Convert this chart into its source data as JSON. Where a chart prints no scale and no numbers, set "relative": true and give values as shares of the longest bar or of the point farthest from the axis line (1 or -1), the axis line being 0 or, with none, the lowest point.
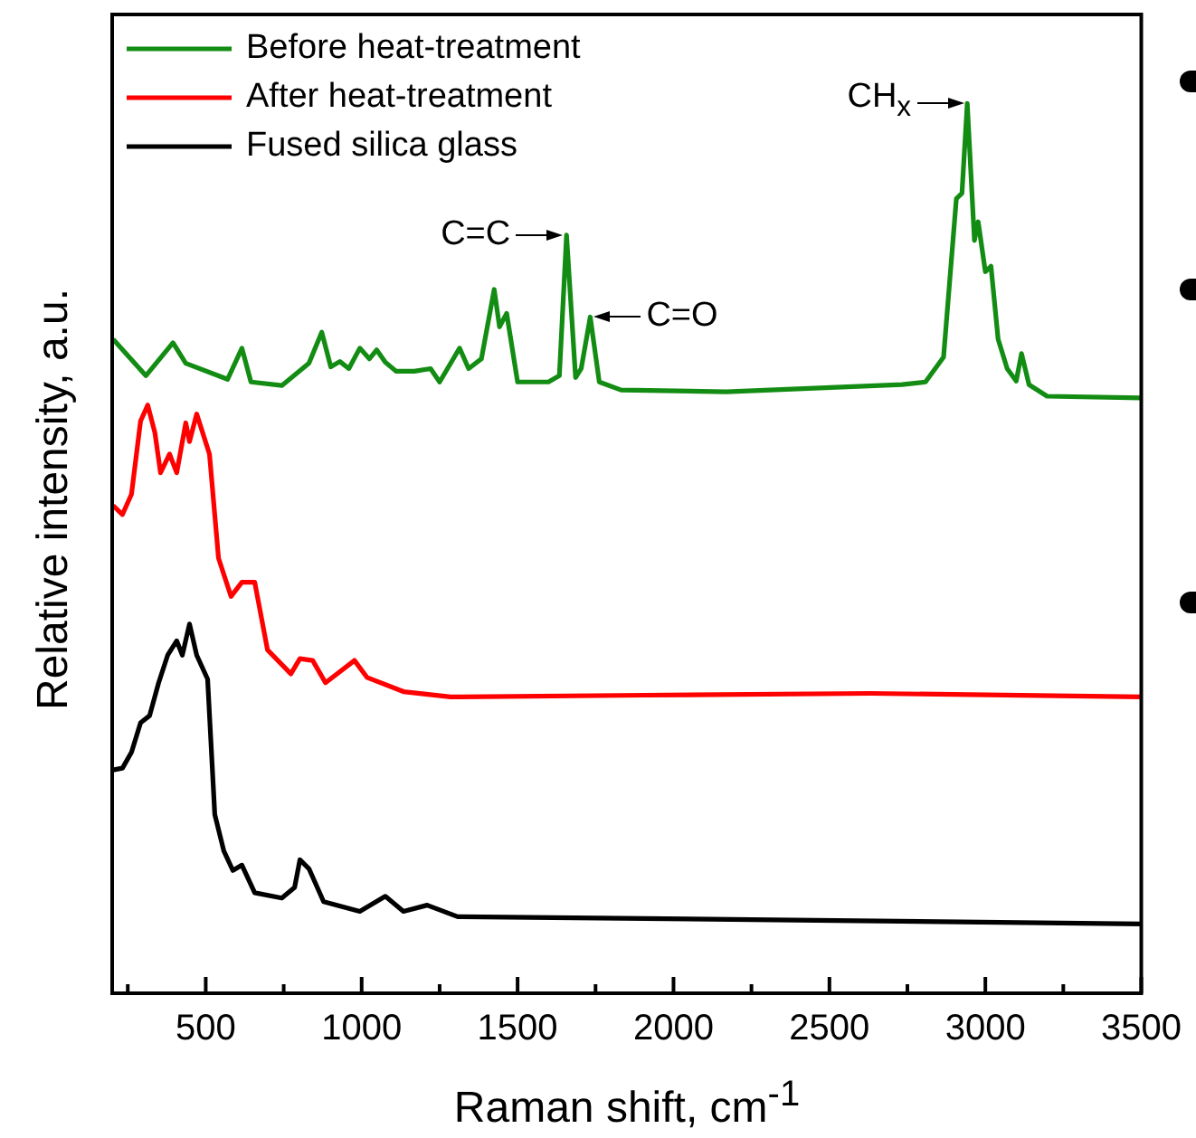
{
  "chart_data": {
    "type": "line",
    "relative": true,
    "xlabel": "Raman shift, cm$^{-1}$",
    "ylabel": "Relative intensity, a.u.",
    "xlim": [
      200,
      3500
    ],
    "xticks": [
      {
        "value": 250,
        "label": null
      },
      500,
      {
        "value": 750,
        "label": null
      },
      1000,
      {
        "value": 1250,
        "label": null
      },
      1500,
      {
        "value": 1750,
        "label": null
      },
      2000,
      {
        "value": 2250,
        "label": null
      },
      2500,
      {
        "value": 2750,
        "label": null
      },
      3000,
      {
        "value": 3250,
        "label": null
      },
      3500
    ],
    "legend": "top left",
    "grid": false,
    "marker": "none",
    "line_style": "solid",
    "annotations": [
      {
        "text": "C=C",
        "x": 1657,
        "y": 0.852
      },
      {
        "text": "C=O",
        "x": 1733,
        "y": 0.76
      },
      {
        "text": "CH$_{x}$",
        "x": 2942,
        "y": 1
      }
    ],
    "series": [
      {
        "name": "Before heat-treatment",
        "color": "#138c13",
        "x": [
          203,
          308,
          395,
          436,
          570,
          616,
          645,
          744,
          831,
          872,
          901,
          930,
          959,
          994,
          1025,
          1048,
          1076,
          1111,
          1169,
          1221,
          1250,
          1314,
          1343,
          1384,
          1425,
          1442,
          1465,
          1500,
          1599,
          1634,
          1657,
          1686,
          1704,
          1733,
          1762,
          1832,
          2169,
          2733,
          2808,
          2866,
          2907,
          2925,
          2942,
          2965,
          2977,
          3000,
          3018,
          3041,
          3070,
          3099,
          3116,
          3140,
          3198,
          3500
        ],
        "values": [
          0.735,
          0.694,
          0.731,
          0.708,
          0.69,
          0.725,
          0.687,
          0.683,
          0.708,
          0.743,
          0.704,
          0.71,
          0.702,
          0.725,
          0.713,
          0.723,
          0.709,
          0.699,
          0.699,
          0.702,
          0.687,
          0.725,
          0.702,
          0.713,
          0.791,
          0.749,
          0.764,
          0.687,
          0.687,
          0.694,
          0.852,
          0.692,
          0.702,
          0.76,
          0.687,
          0.678,
          0.676,
          0.684,
          0.687,
          0.715,
          0.893,
          0.899,
          1,
          0.846,
          0.867,
          0.811,
          0.817,
          0.735,
          0.702,
          0.688,
          0.719,
          0.684,
          0.671,
          0.669
        ]
      },
      {
        "name": "After heat-treatment",
        "color": "#ff0000",
        "x": [
          203,
          233,
          262,
          291,
          314,
          337,
          355,
          384,
          407,
          436,
          448,
          471,
          512,
          541,
          581,
          616,
          657,
          698,
          773,
          802,
          843,
          884,
          977,
          1017,
          1134,
          1285,
          1907,
          2633,
          3500
        ],
        "values": [
          0.548,
          0.538,
          0.561,
          0.643,
          0.661,
          0.63,
          0.585,
          0.606,
          0.585,
          0.641,
          0.62,
          0.651,
          0.606,
          0.489,
          0.446,
          0.462,
          0.462,
          0.386,
          0.359,
          0.376,
          0.374,
          0.349,
          0.374,
          0.355,
          0.339,
          0.333,
          0.335,
          0.337,
          0.333
        ]
      },
      {
        "name": "Fused silica glass",
        "color": "#000000",
        "x": [
          203,
          233,
          262,
          291,
          320,
          349,
          378,
          407,
          425,
          448,
          471,
          506,
          529,
          558,
          587,
          616,
          657,
          744,
          785,
          802,
          831,
          878,
          994,
          1076,
          1134,
          1210,
          1308,
          1907,
          3500
        ],
        "values": [
          0.251,
          0.253,
          0.271,
          0.304,
          0.312,
          0.349,
          0.38,
          0.396,
          0.38,
          0.415,
          0.38,
          0.353,
          0.201,
          0.16,
          0.138,
          0.144,
          0.113,
          0.107,
          0.119,
          0.15,
          0.14,
          0.103,
          0.092,
          0.109,
          0.092,
          0.099,
          0.086,
          0.084,
          0.078
        ]
      }
    ]
  }
}
